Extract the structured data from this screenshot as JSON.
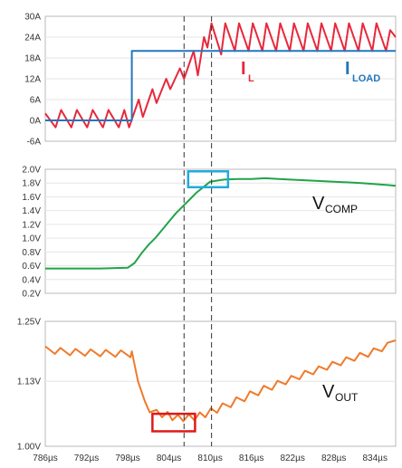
{
  "chart_data": [
    {
      "type": "line",
      "panel": "inductor-and-load-current",
      "xlim": [
        786,
        837
      ],
      "ylim": [
        -6,
        30
      ],
      "yticks": [
        "30A",
        "24A",
        "18A",
        "12A",
        "6A",
        "0A",
        "-6A"
      ],
      "series": [
        {
          "name": "I_L",
          "color": "#e8283c",
          "x": [
            786.0,
            787.5,
            788.3,
            789.8,
            790.6,
            792.1,
            792.9,
            794.4,
            795.2,
            796.7,
            797.5,
            798.2,
            799.6,
            800.2,
            801.6,
            802.2,
            803.6,
            804.2,
            805.6,
            806.2,
            807.6,
            808.2,
            809.1,
            809.6,
            810.2,
            811.6,
            812.2,
            813.6,
            814.2,
            815.6,
            816.2,
            817.6,
            818.2,
            819.6,
            820.2,
            821.6,
            822.2,
            823.6,
            824.2,
            825.6,
            826.2,
            827.6,
            828.2,
            829.6,
            830.2,
            831.6,
            832.2,
            833.6,
            834.2,
            835.6,
            836.2,
            837.0
          ],
          "y": [
            2,
            -2,
            3,
            -2,
            3,
            -2,
            3,
            -2,
            3,
            -2,
            3,
            -2,
            6,
            1,
            9,
            5,
            12,
            9,
            15,
            12,
            20,
            13,
            24,
            21,
            28,
            19,
            28,
            20,
            28,
            20,
            28,
            20,
            28,
            20,
            28,
            20,
            28,
            20,
            28,
            20,
            28,
            20,
            28,
            20,
            28,
            20,
            28,
            20,
            28,
            20,
            26,
            24
          ]
        },
        {
          "name": "I_LOAD",
          "color": "#2277bb",
          "x": [
            786.0,
            798.6,
            798.6,
            837.0
          ],
          "y": [
            0,
            0,
            20,
            20
          ]
        }
      ],
      "annotations": [
        {
          "main": "I",
          "sub": "L"
        },
        {
          "main": "I",
          "sub": "LOAD"
        }
      ]
    },
    {
      "type": "line",
      "panel": "comp-voltage",
      "xlim": [
        786,
        837
      ],
      "ylim": [
        0.2,
        2.0
      ],
      "yticks": [
        "2.0V",
        "1.8V",
        "1.6V",
        "1.4V",
        "1.2V",
        "1.0V",
        "0.8V",
        "0.6V",
        "0.4V",
        "0.2V"
      ],
      "series": [
        {
          "name": "V_COMP",
          "color": "#22a34a",
          "x": [
            786,
            790,
            794,
            798,
            799,
            800,
            801,
            802,
            803,
            804,
            805,
            806,
            807,
            808,
            809,
            810,
            812,
            814,
            816,
            818,
            820,
            824,
            828,
            832,
            836,
            837
          ],
          "y": [
            0.56,
            0.56,
            0.56,
            0.57,
            0.64,
            0.78,
            0.9,
            1.0,
            1.12,
            1.24,
            1.36,
            1.46,
            1.56,
            1.66,
            1.74,
            1.82,
            1.85,
            1.86,
            1.86,
            1.87,
            1.86,
            1.84,
            1.82,
            1.8,
            1.77,
            1.76
          ]
        }
      ],
      "annotations": [
        {
          "main": "V",
          "sub": "COMP"
        }
      ],
      "highlight_box": {
        "x": [
          806.8,
          812.6
        ],
        "y": [
          1.74,
          1.97
        ],
        "color": "#22aadd"
      }
    },
    {
      "type": "line",
      "panel": "output-voltage",
      "xlim": [
        786,
        837
      ],
      "ylim": [
        1.0,
        1.25
      ],
      "yticks": [
        "1.25V",
        "1.13V",
        "1.00V"
      ],
      "xticks": [
        "786µs",
        "792µs",
        "798µs",
        "804µs",
        "810µs",
        "816µs",
        "822µs",
        "828µs",
        "834µs"
      ],
      "xtick_values": [
        786,
        792,
        798,
        804,
        810,
        816,
        822,
        828,
        834
      ],
      "series": [
        {
          "name": "V_OUT",
          "color": "#f07a2a",
          "x": [
            786.0,
            787.4,
            788.2,
            789.6,
            790.4,
            791.8,
            792.6,
            794.0,
            794.8,
            796.2,
            797.0,
            798.4,
            798.6,
            799.5,
            800.5,
            801.2,
            802.2,
            803.0,
            803.8,
            804.5,
            805.3,
            806.1,
            806.9,
            807.7,
            808.5,
            809.3,
            810.1,
            811.0,
            811.8,
            813.0,
            813.8,
            815.0,
            815.8,
            817.0,
            817.8,
            819.0,
            819.8,
            821.0,
            821.8,
            823.0,
            823.8,
            825.0,
            825.8,
            827.0,
            827.8,
            829.0,
            829.8,
            831.0,
            831.8,
            833.0,
            833.8,
            835.0,
            835.8,
            837.0
          ],
          "y": [
            1.2,
            1.185,
            1.197,
            1.182,
            1.195,
            1.181,
            1.194,
            1.18,
            1.193,
            1.179,
            1.192,
            1.178,
            1.19,
            1.13,
            1.09,
            1.068,
            1.073,
            1.058,
            1.069,
            1.052,
            1.063,
            1.05,
            1.064,
            1.052,
            1.068,
            1.058,
            1.076,
            1.067,
            1.086,
            1.078,
            1.098,
            1.09,
            1.11,
            1.102,
            1.121,
            1.113,
            1.131,
            1.124,
            1.141,
            1.134,
            1.151,
            1.144,
            1.16,
            1.153,
            1.169,
            1.162,
            1.178,
            1.171,
            1.187,
            1.179,
            1.196,
            1.19,
            1.207,
            1.212
          ]
        }
      ],
      "annotations": [
        {
          "main": "V",
          "sub": "OUT"
        }
      ],
      "highlight_box": {
        "x": [
          801.6,
          807.8
        ],
        "y": [
          1.03,
          1.065
        ],
        "color": "#dd1a1a"
      }
    }
  ],
  "markers": {
    "x": [
      806.2,
      810.2
    ],
    "style": "dashed"
  },
  "colors": {
    "axis_frame": "#b8b8b8",
    "grid": "#e6e6e6",
    "marker": "#333333"
  }
}
